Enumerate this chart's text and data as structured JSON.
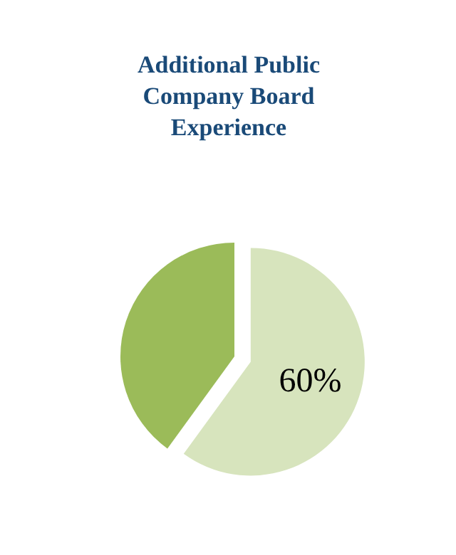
{
  "chart_data": {
    "type": "pie",
    "title": "Additional Public\nCompany Board\nExperience",
    "categories": [
      null,
      null
    ],
    "values": [
      60,
      40
    ],
    "colors": [
      "#d7e4bd",
      "#9bbb59"
    ],
    "value_labels": [
      "60%",
      null
    ]
  }
}
